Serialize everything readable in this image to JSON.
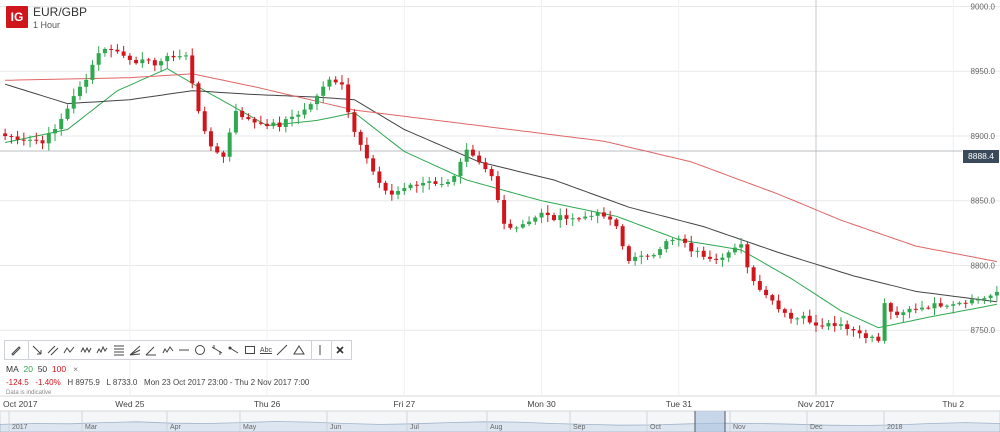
{
  "header": {
    "logo": "IG",
    "symbol": "EUR/GBP",
    "timeframe": "1 Hour"
  },
  "price_tag": "8888.4",
  "toolbar": {
    "tools": [
      "pencil-icon",
      "line-arrow-icon",
      "parallel-lines-icon",
      "zigzag-icon",
      "wave-icon",
      "pattern-icon",
      "fib-icon",
      "fan-icon",
      "angle-icon",
      "abc-icon",
      "hline-icon",
      "circle-icon",
      "cross-line-icon",
      "ray-icon",
      "rect-icon",
      "text-icon",
      "trend-line-icon",
      "triangle-icon",
      "vline-icon",
      "close-icon"
    ],
    "text_label": "Abc"
  },
  "indicators": {
    "label": "MA",
    "p1": "20",
    "p2": "50",
    "p3": "100",
    "close": "×"
  },
  "stats": {
    "change": "-124.5",
    "pct": "-1.40%",
    "high": "H 8975.9",
    "low": "L 8733.0",
    "range": "Mon 23 Oct 2017 23:00 - Thu 2 Nov 2017 7:00"
  },
  "note": "Data is indicative",
  "chart_data": {
    "type": "candlestick",
    "title": "EUR/GBP",
    "subtitle": "1 Hour",
    "y_ticks": [
      "9000.0",
      "8950.0",
      "8900.0",
      "8850.0",
      "8800.0",
      "8750.0"
    ],
    "ylim": [
      8700,
      9005
    ],
    "current_price": 8888.4,
    "x_labels": [
      "Oct 2017",
      "Wed 25",
      "Thu 26",
      "Fri 27",
      "Mon 30",
      "Tue 31",
      "Nov 2017",
      "Thu 2"
    ],
    "x_label_index": [
      0,
      20,
      42,
      64,
      86,
      108,
      130,
      152
    ],
    "n_candles": 160,
    "close_anchors": [
      [
        0,
        8900
      ],
      [
        3,
        8898
      ],
      [
        6,
        8896
      ],
      [
        8,
        8905
      ],
      [
        10,
        8922
      ],
      [
        13,
        8945
      ],
      [
        15,
        8965
      ],
      [
        17,
        8968
      ],
      [
        19,
        8962
      ],
      [
        21,
        8958
      ],
      [
        24,
        8956
      ],
      [
        27,
        8962
      ],
      [
        29,
        8962
      ],
      [
        30,
        8940
      ],
      [
        31,
        8920
      ],
      [
        33,
        8890
      ],
      [
        35,
        8885
      ],
      [
        37,
        8920
      ],
      [
        39,
        8912
      ],
      [
        41,
        8910
      ],
      [
        44,
        8908
      ],
      [
        46,
        8915
      ],
      [
        48,
        8920
      ],
      [
        50,
        8930
      ],
      [
        52,
        8945
      ],
      [
        54,
        8940
      ],
      [
        55,
        8920
      ],
      [
        56,
        8905
      ],
      [
        58,
        8882
      ],
      [
        60,
        8862
      ],
      [
        62,
        8855
      ],
      [
        64,
        8860
      ],
      [
        66,
        8862
      ],
      [
        68,
        8866
      ],
      [
        70,
        8862
      ],
      [
        72,
        8870
      ],
      [
        74,
        8888
      ],
      [
        76,
        8878
      ],
      [
        78,
        8868
      ],
      [
        79,
        8850
      ],
      [
        80,
        8832
      ],
      [
        82,
        8830
      ],
      [
        84,
        8835
      ],
      [
        86,
        8840
      ],
      [
        88,
        8836
      ],
      [
        90,
        8838
      ],
      [
        92,
        8836
      ],
      [
        94,
        8840
      ],
      [
        96,
        8838
      ],
      [
        98,
        8830
      ],
      [
        99,
        8815
      ],
      [
        100,
        8805
      ],
      [
        102,
        8806
      ],
      [
        104,
        8810
      ],
      [
        106,
        8818
      ],
      [
        108,
        8820
      ],
      [
        110,
        8812
      ],
      [
        112,
        8808
      ],
      [
        114,
        8806
      ],
      [
        116,
        8810
      ],
      [
        118,
        8815
      ],
      [
        119,
        8800
      ],
      [
        120,
        8788
      ],
      [
        122,
        8778
      ],
      [
        124,
        8768
      ],
      [
        126,
        8760
      ],
      [
        128,
        8760
      ],
      [
        130,
        8755
      ],
      [
        132,
        8755
      ],
      [
        134,
        8755
      ],
      [
        136,
        8750
      ],
      [
        138,
        8746
      ],
      [
        140,
        8742
      ],
      [
        141,
        8770
      ],
      [
        143,
        8760
      ],
      [
        145,
        8766
      ],
      [
        147,
        8768
      ],
      [
        150,
        8770
      ],
      [
        153,
        8772
      ],
      [
        156,
        8774
      ],
      [
        159,
        8778
      ]
    ],
    "ma_series": [
      {
        "period": 20,
        "color": "#2fa84f",
        "points": [
          [
            0,
            8895
          ],
          [
            10,
            8905
          ],
          [
            18,
            8935
          ],
          [
            26,
            8952
          ],
          [
            32,
            8935
          ],
          [
            42,
            8908
          ],
          [
            50,
            8912
          ],
          [
            56,
            8918
          ],
          [
            64,
            8888
          ],
          [
            74,
            8866
          ],
          [
            86,
            8850
          ],
          [
            98,
            8838
          ],
          [
            108,
            8820
          ],
          [
            118,
            8812
          ],
          [
            126,
            8790
          ],
          [
            134,
            8765
          ],
          [
            140,
            8752
          ],
          [
            148,
            8760
          ],
          [
            159,
            8770
          ]
        ]
      },
      {
        "period": 50,
        "color": "#444444",
        "points": [
          [
            0,
            8940
          ],
          [
            10,
            8925
          ],
          [
            20,
            8928
          ],
          [
            30,
            8935
          ],
          [
            40,
            8932
          ],
          [
            50,
            8930
          ],
          [
            56,
            8928
          ],
          [
            64,
            8905
          ],
          [
            76,
            8880
          ],
          [
            88,
            8866
          ],
          [
            100,
            8845
          ],
          [
            112,
            8830
          ],
          [
            124,
            8810
          ],
          [
            136,
            8792
          ],
          [
            146,
            8780
          ],
          [
            159,
            8772
          ]
        ]
      },
      {
        "period": 100,
        "color": "#e06666",
        "points": [
          [
            0,
            8943
          ],
          [
            20,
            8945
          ],
          [
            30,
            8948
          ],
          [
            40,
            8938
          ],
          [
            56,
            8920
          ],
          [
            76,
            8908
          ],
          [
            96,
            8896
          ],
          [
            110,
            8880
          ],
          [
            124,
            8855
          ],
          [
            134,
            8835
          ],
          [
            146,
            8815
          ],
          [
            159,
            8803
          ]
        ]
      }
    ],
    "up_color": "#2fa84f",
    "down_color": "#d0161d",
    "grid": "horizontal",
    "crosshair_index": 130,
    "navigator": {
      "labels": [
        "2017",
        "Mar",
        "Apr",
        "May",
        "Jun",
        "Jul",
        "Aug",
        "Sep",
        "Oct",
        "Nov",
        "Dec",
        "2018"
      ],
      "label_frac": [
        0.012,
        0.085,
        0.17,
        0.243,
        0.33,
        0.41,
        0.49,
        0.573,
        0.65,
        0.733,
        0.81,
        0.887
      ],
      "window": [
        0.695,
        0.725
      ],
      "profile": [
        0.45,
        0.5,
        0.48,
        0.55,
        0.6,
        0.52,
        0.5,
        0.55,
        0.62,
        0.58,
        0.5,
        0.45,
        0.48,
        0.55,
        0.6,
        0.58,
        0.5,
        0.45,
        0.4,
        0.42,
        0.48,
        0.52,
        0.5,
        0.46,
        0.4,
        0.38,
        0.42,
        0.5,
        0.55,
        0.5
      ]
    }
  }
}
